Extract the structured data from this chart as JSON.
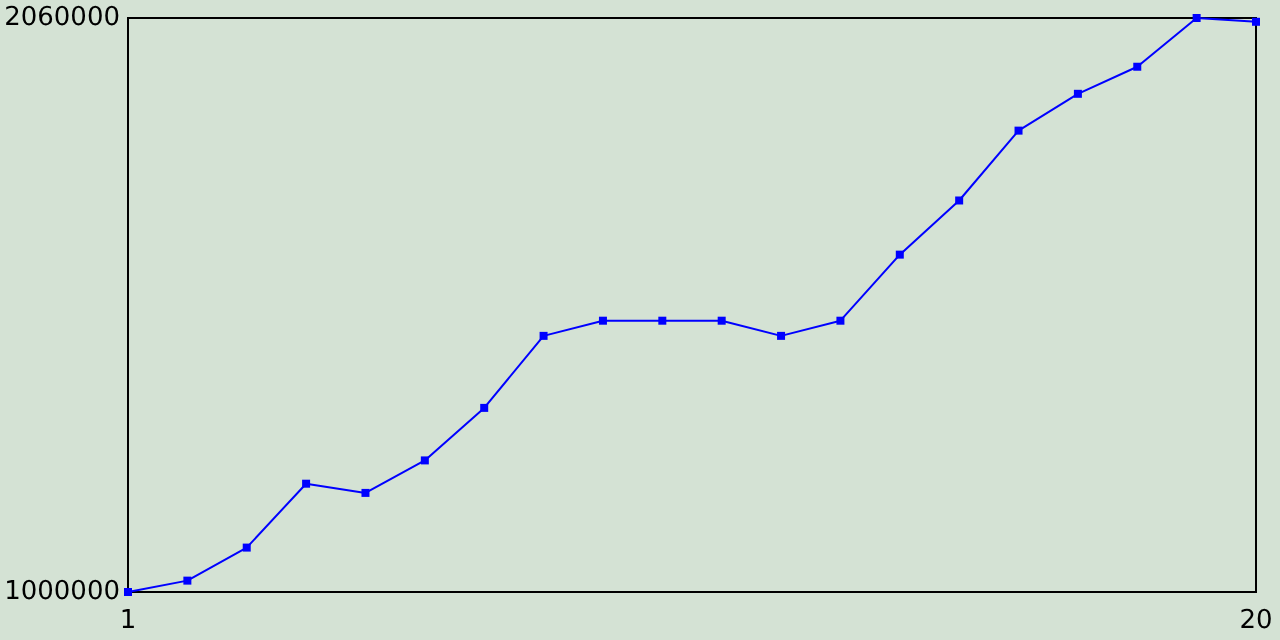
{
  "chart_data": {
    "type": "line",
    "x": [
      1,
      2,
      3,
      4,
      5,
      6,
      7,
      8,
      9,
      10,
      11,
      12,
      13,
      14,
      15,
      16,
      17,
      18,
      19,
      20
    ],
    "series": [
      {
        "color": "#0000ff",
        "values": [
          1000000,
          1021000,
          1082000,
          1200000,
          1183000,
          1243000,
          1340000,
          1473000,
          1501000,
          1501000,
          1501000,
          1473000,
          1501000,
          1623000,
          1723000,
          1852000,
          1920000,
          1970000,
          2060000,
          2053000
        ]
      }
    ],
    "xlim": [
      1,
      20
    ],
    "xticks": [
      1,
      20
    ],
    "ylim": [
      1000000,
      2060000
    ],
    "yticks": [
      1000000,
      2060000
    ],
    "marker": "square",
    "line_style": "solid"
  }
}
